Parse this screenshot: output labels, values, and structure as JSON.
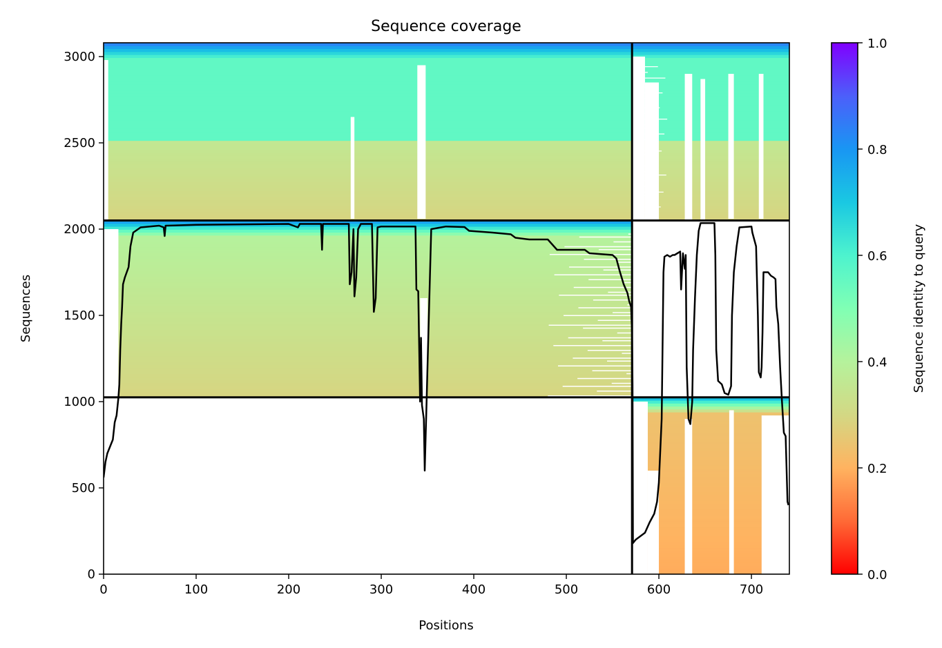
{
  "chart_data": {
    "type": "heatmap",
    "title": "Sequence coverage",
    "xlabel": "Positions",
    "ylabel": "Sequences",
    "xlim": [
      0,
      741
    ],
    "ylim": [
      0,
      3080
    ],
    "xticks": [
      0,
      100,
      200,
      300,
      400,
      500,
      600,
      700
    ],
    "yticks": [
      0,
      500,
      1000,
      1500,
      2000,
      2500,
      3000
    ],
    "grid": false,
    "colorbar": {
      "label": "Sequence identity to query",
      "range": [
        0,
        1
      ],
      "ticks": [
        "0.0",
        "0.2",
        "0.4",
        "0.6",
        "0.8",
        "1.0"
      ],
      "colormap": "rainbow",
      "stops": [
        "#ff0000",
        "#ff6a36",
        "#ffb360",
        "#d3d884",
        "#b5f29c",
        "#80ffb4",
        "#4df3ce",
        "#1ac8e2",
        "#1996f3",
        "#4c5ffa",
        "#8000ff"
      ]
    },
    "separators": {
      "vertical_x": 571,
      "horizontal_y": [
        1025,
        2050
      ]
    },
    "blocks": [
      {
        "name": "top",
        "x": [
          0,
          741
        ],
        "y": [
          2050,
          3080
        ],
        "identity_bottom": 0.29,
        "identity_mid": 0.36,
        "identity_top": 0.56,
        "identity_max": 0.88
      },
      {
        "name": "middle",
        "x": [
          0,
          571
        ],
        "y": [
          1025,
          2050
        ],
        "identity_bottom": 0.29,
        "identity_top": 0.4,
        "identity_max": 0.85
      },
      {
        "name": "bottom-right",
        "x": [
          571,
          741
        ],
        "y": [
          0,
          1025
        ],
        "identity_bottom": 0.19,
        "identity_top": 0.24,
        "identity_max": 0.8
      }
    ],
    "coverage_line": {
      "name": "coverage",
      "color": "#000000",
      "points": [
        [
          0,
          560
        ],
        [
          2,
          650
        ],
        [
          4,
          700
        ],
        [
          7,
          740
        ],
        [
          10,
          780
        ],
        [
          12,
          880
        ],
        [
          14,
          920
        ],
        [
          16,
          1020
        ],
        [
          17,
          1100
        ],
        [
          18,
          1300
        ],
        [
          19,
          1450
        ],
        [
          20,
          1550
        ],
        [
          21,
          1680
        ],
        [
          23,
          1720
        ],
        [
          25,
          1750
        ],
        [
          27,
          1780
        ],
        [
          29,
          1900
        ],
        [
          32,
          1980
        ],
        [
          40,
          2010
        ],
        [
          60,
          2020
        ],
        [
          65,
          2010
        ],
        [
          66,
          1960
        ],
        [
          67,
          2020
        ],
        [
          100,
          2025
        ],
        [
          200,
          2030
        ],
        [
          210,
          2010
        ],
        [
          212,
          2030
        ],
        [
          235,
          2030
        ],
        [
          236,
          1880
        ],
        [
          237,
          2030
        ],
        [
          265,
          2030
        ],
        [
          266,
          1680
        ],
        [
          268,
          1750
        ],
        [
          270,
          2000
        ],
        [
          271,
          1610
        ],
        [
          273,
          1720
        ],
        [
          275,
          2000
        ],
        [
          278,
          2030
        ],
        [
          290,
          2030
        ],
        [
          292,
          1520
        ],
        [
          294,
          1600
        ],
        [
          296,
          2010
        ],
        [
          300,
          2015
        ],
        [
          337,
          2015
        ],
        [
          338,
          1650
        ],
        [
          340,
          1640
        ],
        [
          342,
          1000
        ],
        [
          343,
          1370
        ],
        [
          344,
          980
        ],
        [
          346,
          900
        ],
        [
          347,
          600
        ],
        [
          349,
          1000
        ],
        [
          350,
          1200
        ],
        [
          352,
          1600
        ],
        [
          354,
          2000
        ],
        [
          370,
          2015
        ],
        [
          390,
          2012
        ],
        [
          395,
          1990
        ],
        [
          420,
          1980
        ],
        [
          440,
          1970
        ],
        [
          445,
          1950
        ],
        [
          460,
          1940
        ],
        [
          480,
          1940
        ],
        [
          485,
          1910
        ],
        [
          490,
          1880
        ],
        [
          520,
          1880
        ],
        [
          525,
          1860
        ],
        [
          550,
          1850
        ],
        [
          554,
          1830
        ],
        [
          558,
          1750
        ],
        [
          562,
          1680
        ],
        [
          566,
          1630
        ],
        [
          568,
          1580
        ],
        [
          570,
          1550
        ],
        [
          571,
          1400
        ],
        [
          571.5,
          1100
        ],
        [
          572,
          180
        ],
        [
          575,
          200
        ],
        [
          580,
          220
        ],
        [
          585,
          240
        ],
        [
          590,
          300
        ],
        [
          595,
          350
        ],
        [
          598,
          420
        ],
        [
          600,
          530
        ],
        [
          603,
          900
        ],
        [
          605,
          1750
        ],
        [
          606,
          1840
        ],
        [
          609,
          1850
        ],
        [
          612,
          1840
        ],
        [
          615,
          1850
        ],
        [
          617,
          1850
        ],
        [
          620,
          1860
        ],
        [
          623,
          1870
        ],
        [
          624,
          1650
        ],
        [
          626,
          1860
        ],
        [
          628,
          1770
        ],
        [
          629,
          1850
        ],
        [
          630,
          1200
        ],
        [
          632,
          900
        ],
        [
          634,
          870
        ],
        [
          636,
          1000
        ],
        [
          637,
          1300
        ],
        [
          639,
          1600
        ],
        [
          641,
          1850
        ],
        [
          643,
          1990
        ],
        [
          645,
          2035
        ],
        [
          660,
          2035
        ],
        [
          661,
          1850
        ],
        [
          662,
          1300
        ],
        [
          664,
          1120
        ],
        [
          668,
          1100
        ],
        [
          671,
          1050
        ],
        [
          675,
          1040
        ],
        [
          678,
          1090
        ],
        [
          679,
          1500
        ],
        [
          681,
          1750
        ],
        [
          684,
          1900
        ],
        [
          687,
          2010
        ],
        [
          700,
          2015
        ],
        [
          701,
          1980
        ],
        [
          705,
          1900
        ],
        [
          707,
          1500
        ],
        [
          708,
          1170
        ],
        [
          710,
          1140
        ],
        [
          711,
          1200
        ],
        [
          712,
          1400
        ],
        [
          713,
          1750
        ],
        [
          718,
          1750
        ],
        [
          721,
          1730
        ],
        [
          724,
          1720
        ],
        [
          726,
          1710
        ],
        [
          727,
          1550
        ],
        [
          729,
          1450
        ],
        [
          731,
          1200
        ],
        [
          733,
          1000
        ],
        [
          735,
          820
        ],
        [
          737,
          800
        ],
        [
          739,
          420
        ],
        [
          740,
          400
        ]
      ]
    }
  }
}
